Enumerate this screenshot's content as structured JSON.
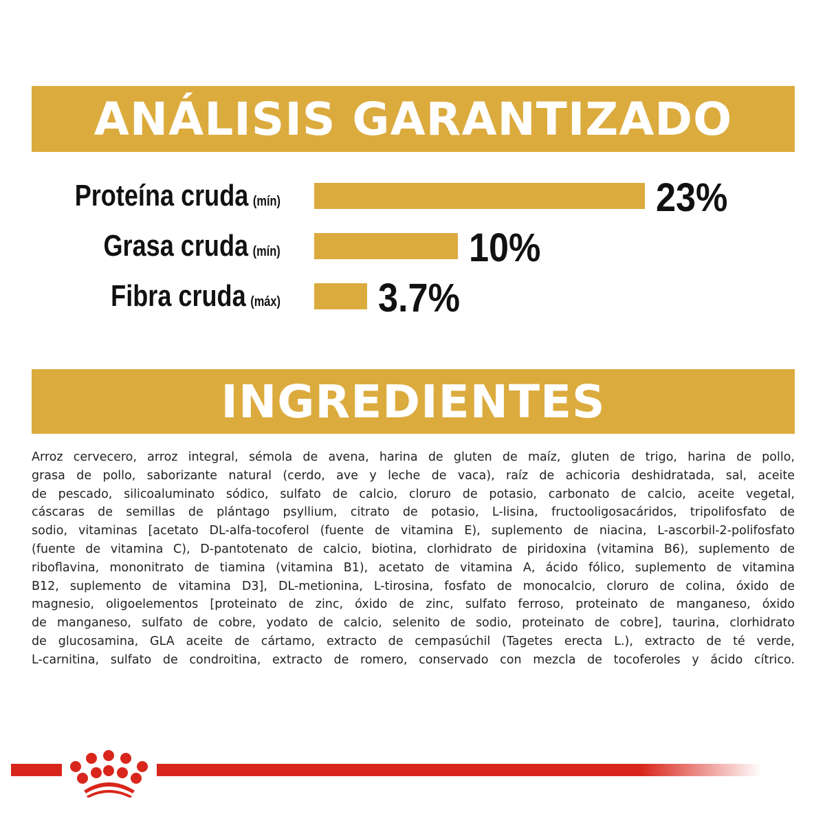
{
  "analysis": {
    "title": "ANÁLISIS GARANTIZADO",
    "bar_color": "#dcab3e",
    "items": [
      {
        "label": "Proteína cruda",
        "qualifier": "(mín)",
        "value": 23,
        "display": "23%"
      },
      {
        "label": "Grasa cruda",
        "qualifier": "(mín)",
        "value": 10,
        "display": "10%"
      },
      {
        "label": "Fibra cruda",
        "qualifier": "(máx)",
        "value": 3.7,
        "display": "3.7%"
      }
    ]
  },
  "ingredients": {
    "title": "INGREDIENTES",
    "lines": [
      "Arroz cervecero, arroz integral, sémola de avena, harina de gluten de maíz, gluten de trigo, harina de pollo,",
      "grasa de pollo, saborizante natural (cerdo, ave y leche de vaca), raíz de achicoria deshidratada, sal, aceite",
      "de pescado, silicoaluminato sódico, sulfato de calcio, cloruro de potasio, carbonato de calcio, aceite vegetal,",
      "cáscaras de semillas de plántago psyllium, citrato de potasio, L-lisina, fructooligosacáridos, tripolifosfato de",
      "sodio, vitaminas [acetato DL-alfa-tocoferol (fuente de vitamina E), suplemento de niacina, L-ascorbil-2-polifosfato",
      "(fuente de vitamina C), D-pantotenato de calcio, biotina, clorhidrato de piridoxina (vitamina B6), suplemento de",
      "riboflavina, mononitrato de tiamina (vitamina B1), acetato de vitamina A, ácido fólico, suplemento de vitamina",
      "B12, suplemento de vitamina D3], DL-metionina, L-tirosina, fosfato de monocalcio, cloruro de colina, óxido de",
      "magnesio, oligoelementos [proteinato de zinc, óxido de zinc, sulfato ferroso, proteinato de manganeso, óxido",
      "de manganeso, sulfato de cobre, yodato de calcio, selenito de sodio, proteinato de cobre], taurina, clorhidrato",
      "de glucosamina, GLA aceite de cártamo, extracto de cempasúchil (Tagetes erecta L.), extracto de té verde,",
      "L-carnitina, sulfato de condroitina, extracto de romero, conservado con mezcla de tocoferoles y ácido cítrico."
    ]
  },
  "brand": {
    "logo": "crown-logo",
    "color": "#d9261c"
  }
}
